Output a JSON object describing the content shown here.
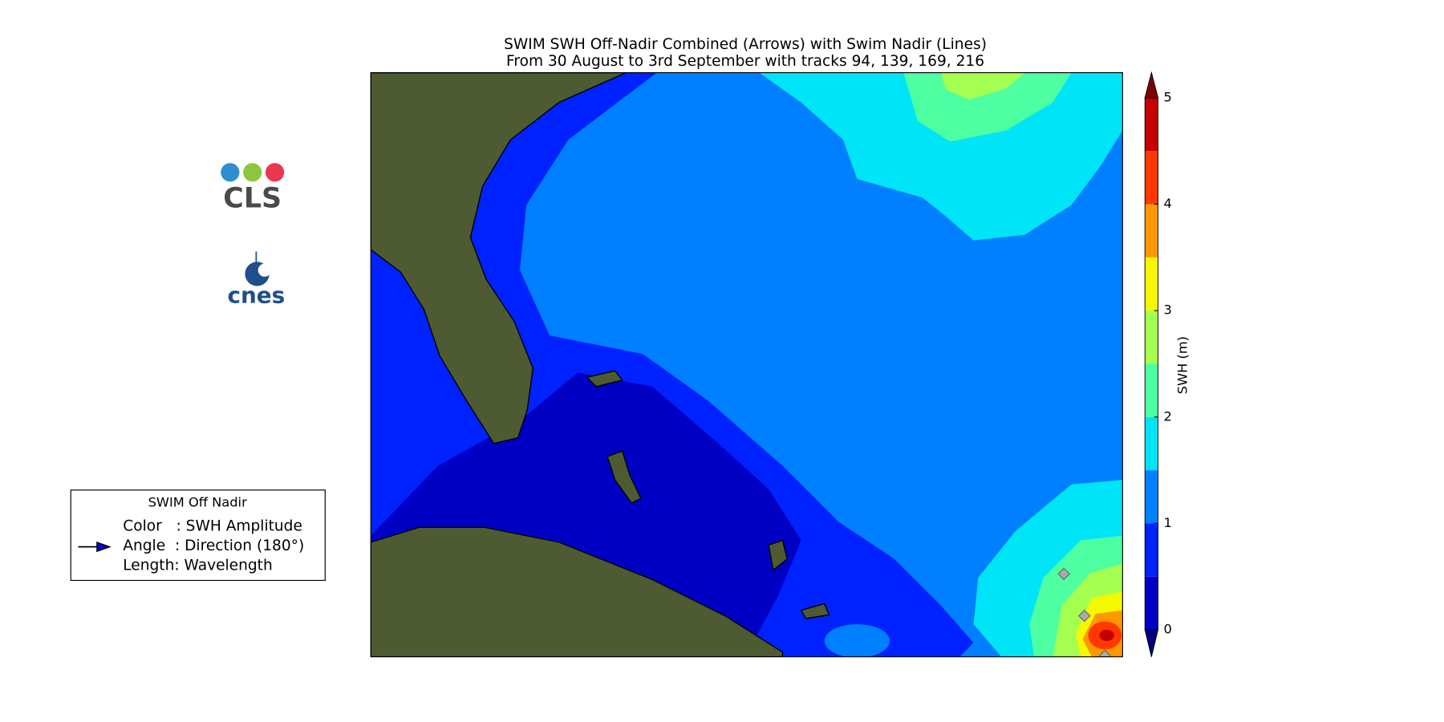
{
  "map": {
    "title": "SWIM SWH Off-Nadir Combined (Arrows) with Swim Nadir (Lines)",
    "subtitle": "From 30 August to 3rd September with tracks 94, 139, 169, 216",
    "logos": [
      "CLS",
      "cnes"
    ],
    "legend": {
      "title": "SWIM Off Nadir",
      "lines": [
        "Color   : SWH Amplitude",
        "Angle  : Direction (180°)",
        "Length: Wavelength"
      ]
    },
    "colorbar": {
      "label": "SWH (m)",
      "clim": [
        0,
        5
      ],
      "ticks": [
        0,
        1,
        2,
        3,
        4,
        5
      ],
      "levels": [
        0,
        0.5,
        1,
        1.5,
        2,
        2.5,
        3,
        3.5,
        4,
        4.5,
        5
      ],
      "colors": [
        "#0000c4",
        "#0022ff",
        "#0080ff",
        "#00e4f8",
        "#4dffa0",
        "#a4ff50",
        "#f4f800",
        "#ff9800",
        "#ff3800",
        "#c40000"
      ],
      "under_color": "#00007f",
      "over_color": "#7f0000"
    }
  }
}
